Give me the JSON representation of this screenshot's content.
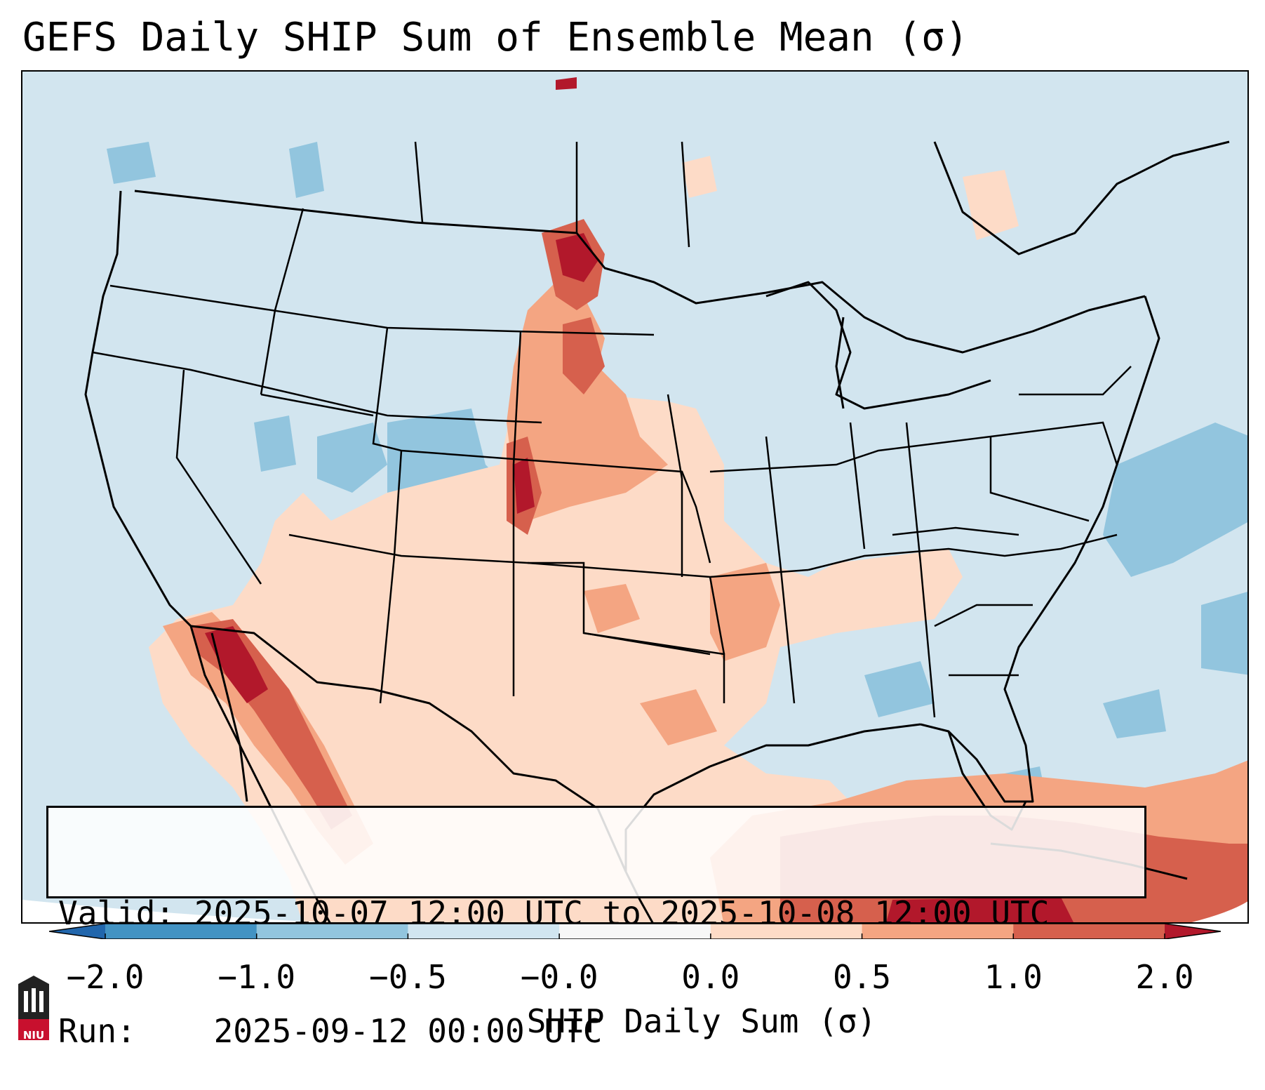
{
  "title": "GEFS Daily SHIP Sum of Ensemble Mean (σ)",
  "info": {
    "valid_label": "Valid:",
    "valid_value": "2025-10-07 12:00 UTC to 2025-10-08 12:00 UTC",
    "run_label": "Run:",
    "run_value": "2025-09-12 00:00 UTC"
  },
  "colorbar": {
    "title": "SHIP Daily Sum (σ)",
    "tick_labels": [
      "−2.0",
      "−1.0",
      "−0.5",
      "−0.0",
      "0.0",
      "0.5",
      "1.0",
      "2.0"
    ],
    "bins": [
      {
        "from": -2.0,
        "to": -1.0,
        "color": "#4393c3"
      },
      {
        "from": -1.0,
        "to": -0.5,
        "color": "#92c5de"
      },
      {
        "from": -0.5,
        "to": -0.0,
        "color": "#d1e5f0"
      },
      {
        "from": -0.0,
        "to": 0.0,
        "color": "#f7f7f7"
      },
      {
        "from": 0.0,
        "to": 0.5,
        "color": "#fddbc7"
      },
      {
        "from": 0.5,
        "to": 1.0,
        "color": "#f4a582"
      },
      {
        "from": 1.0,
        "to": 2.0,
        "color": "#d6604d"
      }
    ],
    "extend_low_color": "#2166ac",
    "extend_high_color": "#b2182b"
  },
  "colors": {
    "ocean_background": "#d2e5ef",
    "state_lines": "#000000",
    "neg_strong": "#92c5de",
    "pos_weak": "#fddbc7",
    "pos_mid": "#f4a582",
    "pos_strong": "#d6604d",
    "pos_extreme": "#b2182b"
  },
  "logo": {
    "text": "NIU"
  }
}
